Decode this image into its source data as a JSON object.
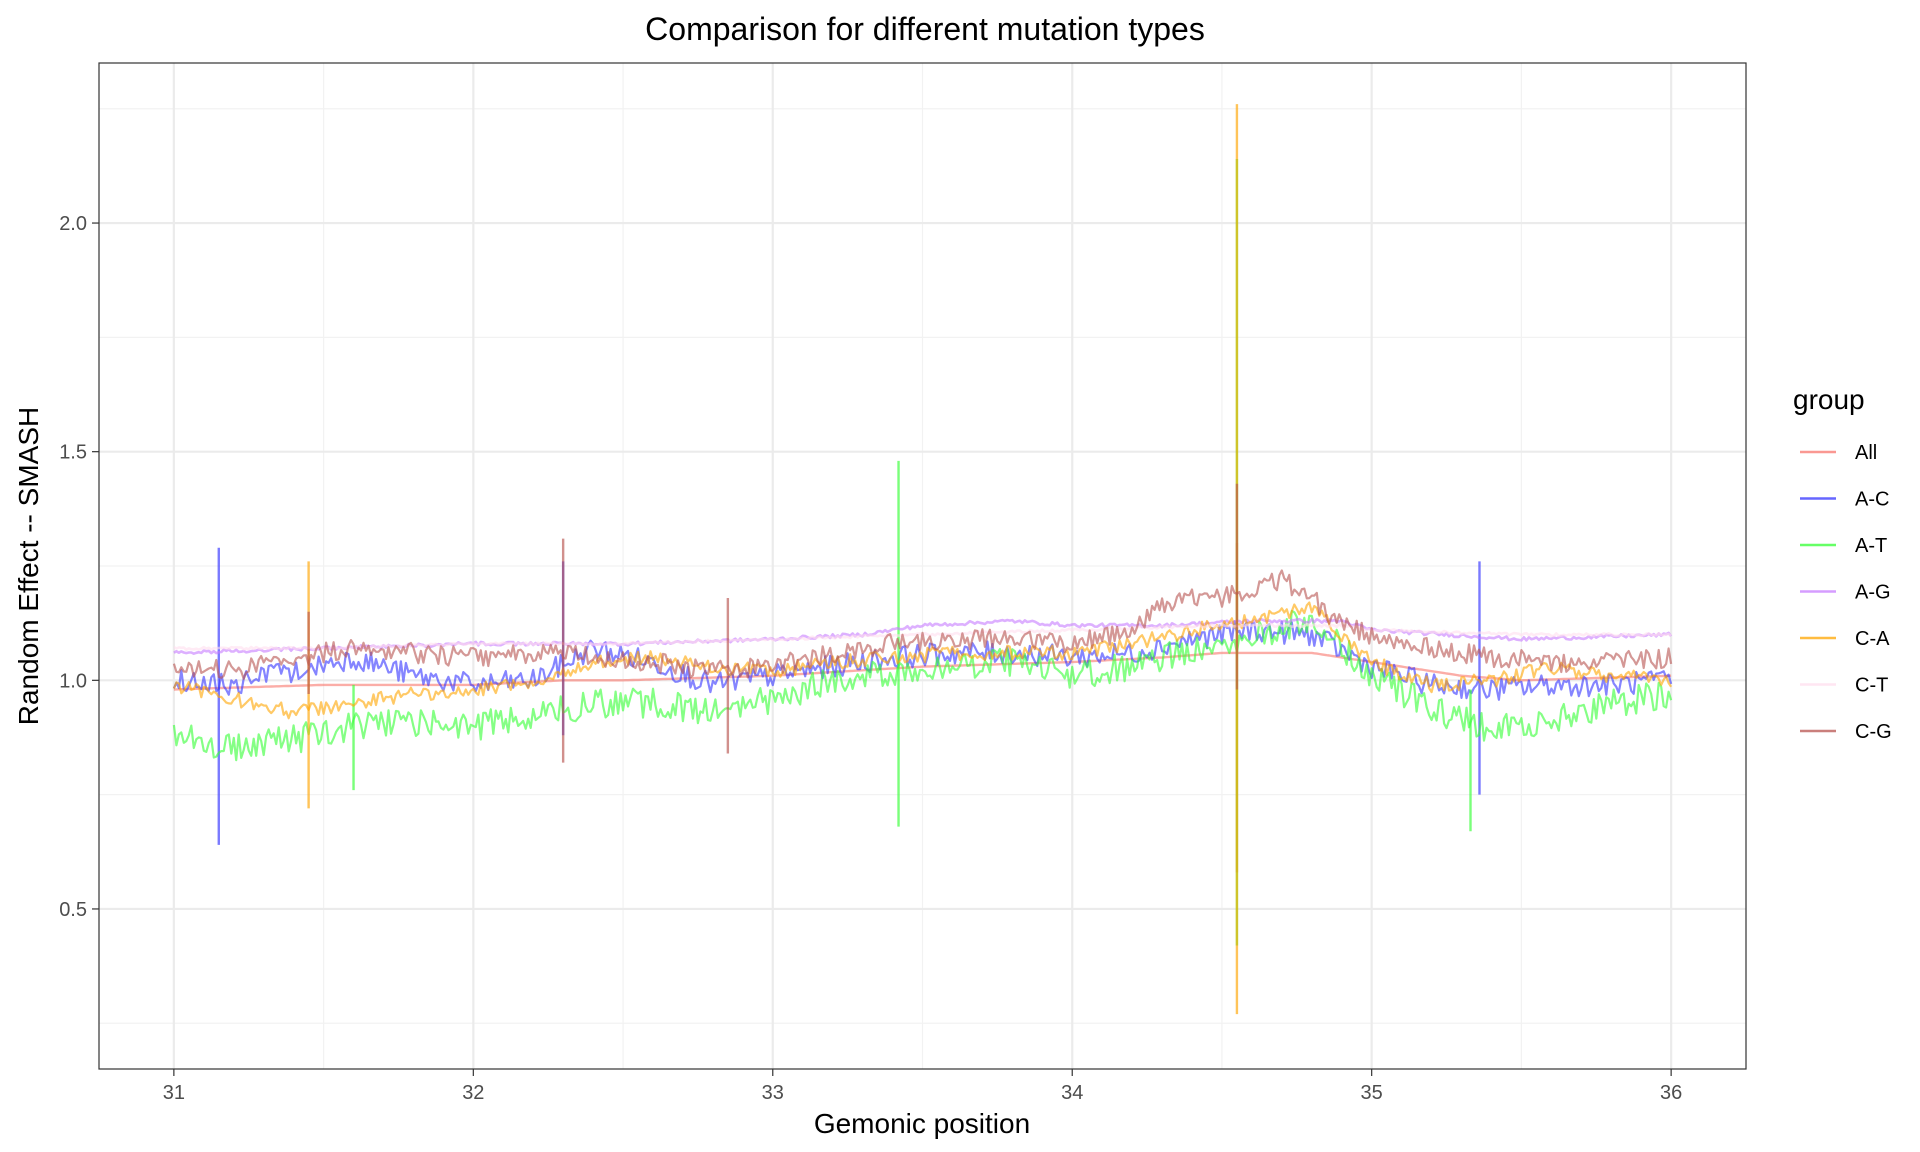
{
  "chart_data": {
    "type": "line",
    "title": "Comparison for different mutation types",
    "xlabel": "Gemonic position",
    "ylabel": "Random Effect -- SMASH",
    "xlim": [
      30.75,
      36.25
    ],
    "ylim": [
      0.15,
      2.35
    ],
    "x_ticks": [
      31,
      32,
      33,
      34,
      35,
      36
    ],
    "x_tick_labels": [
      "31",
      "32",
      "33",
      "34",
      "35",
      "36"
    ],
    "y_ticks": [
      0.5,
      1.0,
      1.5,
      2.0
    ],
    "y_tick_labels": [
      "0.5",
      "1.0",
      "1.5",
      "2.0"
    ],
    "grid": true,
    "legend": {
      "title": "group",
      "position": "right"
    },
    "series": [
      {
        "name": "All",
        "color": "#F8766D",
        "x": [
          31.0,
          31.5,
          32.0,
          32.3,
          32.5,
          33.0,
          33.5,
          34.0,
          34.3,
          34.5,
          34.55,
          34.8,
          35.0,
          35.3,
          35.5,
          36.0
        ],
        "y": [
          0.98,
          0.99,
          0.99,
          1.0,
          1.0,
          1.01,
          1.03,
          1.04,
          1.05,
          1.06,
          1.06,
          1.06,
          1.04,
          1.01,
          1.0,
          1.01
        ],
        "spikes": [
          {
            "x": 34.55,
            "low": 0.58,
            "high": 1.3
          }
        ]
      },
      {
        "name": "A-C",
        "color": "#3333FF",
        "x": [
          31.0,
          31.2,
          31.4,
          31.6,
          31.8,
          32.0,
          32.2,
          32.4,
          32.6,
          32.8,
          33.0,
          33.2,
          33.4,
          33.6,
          33.8,
          34.0,
          34.2,
          34.4,
          34.6,
          34.8,
          35.0,
          35.2,
          35.4,
          35.6,
          35.8,
          36.0
        ],
        "y": [
          1.0,
          0.99,
          1.02,
          1.05,
          1.01,
          0.99,
          1.0,
          1.07,
          1.04,
          0.99,
          1.01,
          1.03,
          1.05,
          1.06,
          1.06,
          1.05,
          1.06,
          1.09,
          1.11,
          1.1,
          1.03,
          0.99,
          0.98,
          0.99,
          0.99,
          1.0
        ],
        "spikes": [
          {
            "x": 31.15,
            "low": 0.64,
            "high": 1.29
          },
          {
            "x": 32.3,
            "low": 0.88,
            "high": 1.26
          },
          {
            "x": 35.36,
            "low": 0.75,
            "high": 1.26
          }
        ]
      },
      {
        "name": "A-T",
        "color": "#33FF33",
        "x": [
          31.0,
          31.2,
          31.4,
          31.6,
          31.8,
          32.0,
          32.2,
          32.4,
          32.6,
          32.8,
          33.0,
          33.2,
          33.4,
          33.6,
          33.8,
          34.0,
          34.2,
          34.4,
          34.6,
          34.8,
          35.0,
          35.2,
          35.4,
          35.6,
          35.8,
          36.0
        ],
        "y": [
          0.88,
          0.85,
          0.87,
          0.9,
          0.91,
          0.9,
          0.92,
          0.95,
          0.95,
          0.93,
          0.96,
          1.0,
          1.02,
          1.03,
          1.04,
          1.01,
          1.03,
          1.07,
          1.1,
          1.13,
          1.01,
          0.94,
          0.89,
          0.91,
          0.95,
          0.97
        ],
        "spikes": [
          {
            "x": 31.6,
            "low": 0.76,
            "high": 0.99
          },
          {
            "x": 33.42,
            "low": 0.68,
            "high": 1.48
          },
          {
            "x": 34.55,
            "low": 0.42,
            "high": 2.14
          },
          {
            "x": 35.33,
            "low": 0.67,
            "high": 0.98
          }
        ]
      },
      {
        "name": "A-G",
        "color": "#C77CFF",
        "x": [
          31.0,
          31.5,
          32.0,
          32.5,
          33.0,
          33.3,
          33.5,
          33.8,
          34.0,
          34.3,
          34.6,
          34.9,
          35.0,
          35.5,
          36.0
        ],
        "y": [
          1.06,
          1.07,
          1.08,
          1.08,
          1.09,
          1.1,
          1.12,
          1.13,
          1.12,
          1.12,
          1.13,
          1.13,
          1.11,
          1.09,
          1.1
        ]
      },
      {
        "name": "C-A",
        "color": "#FFA500",
        "x": [
          31.0,
          31.2,
          31.4,
          31.6,
          31.8,
          32.0,
          32.2,
          32.4,
          32.6,
          32.8,
          33.0,
          33.2,
          33.4,
          33.6,
          33.8,
          34.0,
          34.2,
          34.4,
          34.6,
          34.8,
          35.0,
          35.2,
          35.4,
          35.6,
          35.8,
          36.0
        ],
        "y": [
          0.99,
          0.96,
          0.93,
          0.95,
          0.97,
          0.98,
          1.0,
          1.04,
          1.05,
          1.03,
          1.02,
          1.04,
          1.05,
          1.06,
          1.06,
          1.06,
          1.08,
          1.11,
          1.13,
          1.16,
          1.04,
          0.99,
          1.0,
          1.03,
          1.01,
          1.0
        ],
        "spikes": [
          {
            "x": 31.45,
            "low": 0.72,
            "high": 1.26
          },
          {
            "x": 34.55,
            "low": 0.27,
            "high": 2.26
          }
        ]
      },
      {
        "name": "C-T",
        "color": "#FFDDEE",
        "x": [
          31.0,
          31.5,
          32.0,
          32.5,
          33.0,
          33.5,
          34.0,
          34.5,
          34.9,
          35.0,
          35.5,
          36.0
        ],
        "y": [
          1.07,
          1.07,
          1.08,
          1.08,
          1.09,
          1.1,
          1.11,
          1.12,
          1.12,
          1.11,
          1.1,
          1.1
        ]
      },
      {
        "name": "C-G",
        "color": "#B85450",
        "x": [
          31.0,
          31.2,
          31.4,
          31.6,
          31.8,
          32.0,
          32.2,
          32.4,
          32.6,
          32.8,
          33.0,
          33.2,
          33.4,
          33.6,
          33.8,
          34.0,
          34.2,
          34.3,
          34.4,
          34.5,
          34.6,
          34.7,
          34.8,
          34.9,
          35.0,
          35.2,
          35.4,
          35.6,
          35.8,
          36.0
        ],
        "y": [
          1.03,
          1.02,
          1.05,
          1.07,
          1.06,
          1.05,
          1.06,
          1.05,
          1.04,
          1.02,
          1.03,
          1.06,
          1.08,
          1.09,
          1.09,
          1.08,
          1.11,
          1.16,
          1.18,
          1.18,
          1.2,
          1.22,
          1.18,
          1.12,
          1.1,
          1.07,
          1.05,
          1.04,
          1.04,
          1.05
        ],
        "spikes": [
          {
            "x": 31.45,
            "low": 0.97,
            "high": 1.15
          },
          {
            "x": 32.3,
            "low": 0.82,
            "high": 1.31
          },
          {
            "x": 32.85,
            "low": 0.84,
            "high": 1.18
          },
          {
            "x": 34.55,
            "low": 0.98,
            "high": 1.43
          }
        ]
      }
    ]
  }
}
